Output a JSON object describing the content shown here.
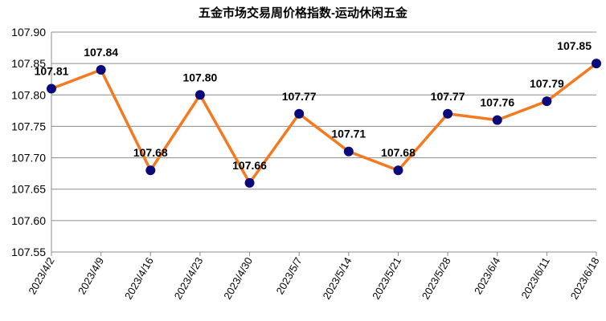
{
  "chart_data": {
    "type": "line",
    "title": "五金市场交易周价格指数-运动休闲五金",
    "xlabel": "",
    "ylabel": "",
    "categories": [
      "2023/4/2",
      "2023/4/9",
      "2023/4/16",
      "2023/4/23",
      "2023/4/30",
      "2023/5/7",
      "2023/5/14",
      "2023/5/21",
      "2023/5/28",
      "2023/6/4",
      "2023/6/11",
      "2023/6/18"
    ],
    "series": [
      {
        "values": [
          107.81,
          107.84,
          107.68,
          107.8,
          107.66,
          107.77,
          107.71,
          107.68,
          107.77,
          107.76,
          107.79,
          107.85
        ],
        "labels": [
          "107.81",
          "107.84",
          "107.68",
          "107.80",
          "107.66",
          "107.77",
          "107.71",
          "107.68",
          "107.77",
          "107.76",
          "107.79",
          "107.85"
        ],
        "line_color": "#F5791F",
        "marker_color": "#0A0A78"
      }
    ],
    "ylim": [
      107.55,
      107.9
    ],
    "yticks": [
      "107.55",
      "107.60",
      "107.65",
      "107.70",
      "107.75",
      "107.80",
      "107.85",
      "107.90"
    ],
    "grid": true,
    "legend": "none"
  }
}
